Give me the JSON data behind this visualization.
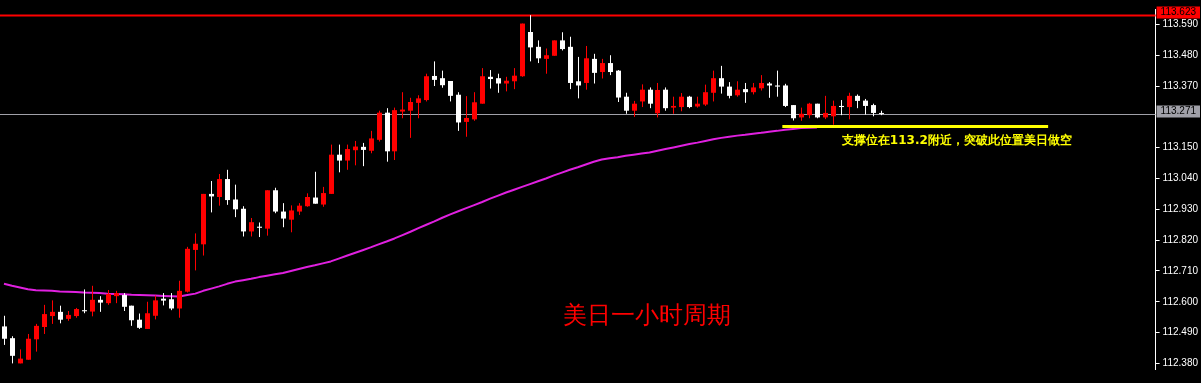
{
  "chart_data": {
    "type": "candlestick",
    "title": "美日一小时周期",
    "categories": [
      null,
      null,
      null,
      null,
      null,
      null,
      null,
      null,
      null,
      null,
      null,
      null,
      null,
      null,
      null,
      null,
      null,
      null,
      null,
      null,
      null,
      null,
      null,
      null,
      null,
      null,
      null,
      null,
      null,
      null,
      null,
      null,
      null,
      null,
      null,
      null,
      null,
      null,
      null,
      null,
      null,
      null,
      null,
      null,
      null,
      null,
      null,
      null,
      null,
      null,
      null,
      null,
      null,
      null,
      null,
      null,
      null,
      null,
      null,
      null,
      null,
      null,
      null,
      null,
      null,
      null,
      null,
      null,
      null,
      null,
      null,
      null,
      null,
      null,
      null,
      null,
      null,
      null,
      null,
      null,
      null,
      null,
      null,
      null,
      null,
      null,
      null,
      null,
      null,
      null,
      null,
      null,
      null,
      null,
      null,
      null,
      null,
      null,
      null,
      null,
      null,
      null,
      null,
      null,
      null,
      null,
      null,
      null,
      null,
      null,
      null,
      null,
      null,
      null,
      null,
      null,
      null,
      null,
      null,
      null,
      null,
      null,
      null,
      null,
      null,
      null,
      null,
      null,
      null,
      null,
      null,
      null,
      null,
      null,
      null,
      null,
      null,
      null,
      null,
      null,
      null,
      null,
      null,
      null,
      null
    ],
    "ohlc": [
      [
        112.512,
        112.55,
        112.446,
        112.468
      ],
      [
        112.47,
        112.477,
        112.38,
        112.407
      ],
      [
        112.38,
        112.43,
        112.38,
        112.397
      ],
      [
        112.393,
        112.485,
        112.393,
        112.468
      ],
      [
        112.466,
        112.521,
        112.422,
        112.514
      ],
      [
        112.51,
        112.589,
        112.485,
        112.556
      ],
      [
        112.549,
        112.605,
        112.521,
        112.564
      ],
      [
        112.564,
        112.586,
        112.523,
        112.536
      ],
      [
        112.539,
        112.567,
        112.532,
        112.553
      ],
      [
        112.549,
        112.578,
        112.543,
        112.574
      ],
      [
        112.57,
        112.644,
        112.559,
        112.566
      ],
      [
        112.565,
        112.657,
        112.548,
        112.607
      ],
      [
        112.607,
        112.62,
        112.564,
        112.597
      ],
      [
        112.595,
        112.642,
        112.589,
        112.628
      ],
      [
        112.62,
        112.639,
        112.595,
        112.631
      ],
      [
        112.624,
        112.631,
        112.567,
        112.582
      ],
      [
        112.586,
        112.586,
        112.514,
        112.534
      ],
      [
        112.536,
        112.558,
        112.503,
        112.507
      ],
      [
        112.503,
        112.6,
        112.503,
        112.559
      ],
      [
        112.55,
        112.622,
        112.537,
        112.605
      ],
      [
        112.611,
        112.631,
        112.587,
        112.604
      ],
      [
        112.609,
        112.631,
        112.57,
        112.576
      ],
      [
        112.576,
        112.675,
        112.543,
        112.639
      ],
      [
        112.636,
        112.796,
        112.633,
        112.789
      ],
      [
        112.785,
        112.844,
        112.712,
        112.807
      ],
      [
        112.805,
        112.985,
        112.765,
        112.985
      ],
      [
        112.985,
        113.031,
        112.919,
        112.976
      ],
      [
        112.974,
        113.056,
        112.943,
        113.038
      ],
      [
        113.038,
        113.071,
        112.946,
        112.963
      ],
      [
        112.965,
        113.018,
        112.902,
        112.93
      ],
      [
        112.932,
        112.941,
        112.833,
        112.851
      ],
      [
        112.851,
        112.899,
        112.833,
        112.884
      ],
      [
        112.868,
        112.883,
        112.831,
        112.864
      ],
      [
        112.861,
        112.998,
        112.836,
        112.998
      ],
      [
        112.998,
        113.007,
        112.916,
        112.922
      ],
      [
        112.922,
        112.952,
        112.866,
        112.897
      ],
      [
        112.893,
        112.944,
        112.848,
        112.926
      ],
      [
        112.922,
        112.952,
        112.91,
        112.943
      ],
      [
        112.941,
        112.987,
        112.939,
        112.974
      ],
      [
        112.972,
        113.064,
        112.95,
        112.95
      ],
      [
        112.947,
        113.01,
        112.939,
        112.988
      ],
      [
        112.985,
        113.161,
        112.985,
        113.125
      ],
      [
        113.125,
        113.161,
        113.062,
        113.104
      ],
      [
        113.104,
        113.161,
        113.071,
        113.145
      ],
      [
        113.141,
        113.174,
        113.087,
        113.154
      ],
      [
        113.153,
        113.167,
        113.084,
        113.142
      ],
      [
        113.139,
        113.21,
        113.13,
        113.183
      ],
      [
        113.178,
        113.282,
        113.172,
        113.275
      ],
      [
        113.275,
        113.291,
        113.1,
        113.137
      ],
      [
        113.137,
        113.293,
        113.106,
        113.284
      ],
      [
        113.279,
        113.348,
        113.255,
        113.286
      ],
      [
        113.282,
        113.328,
        113.185,
        113.313
      ],
      [
        113.31,
        113.337,
        113.255,
        113.326
      ],
      [
        113.32,
        113.414,
        113.315,
        113.405
      ],
      [
        113.406,
        113.458,
        113.37,
        113.392
      ],
      [
        113.398,
        113.425,
        113.364,
        113.373
      ],
      [
        113.388,
        113.388,
        113.315,
        113.335
      ],
      [
        113.339,
        113.348,
        113.21,
        113.24
      ],
      [
        113.242,
        113.334,
        113.189,
        113.256
      ],
      [
        113.251,
        113.348,
        113.246,
        113.312
      ],
      [
        113.307,
        113.434,
        113.307,
        113.405
      ],
      [
        113.403,
        113.427,
        113.361,
        113.395
      ],
      [
        113.398,
        113.414,
        113.346,
        113.379
      ],
      [
        113.379,
        113.403,
        113.351,
        113.389
      ],
      [
        113.387,
        113.434,
        113.359,
        113.407
      ],
      [
        113.405,
        113.593,
        113.403,
        113.593
      ],
      [
        113.563,
        113.623,
        113.458,
        113.508
      ],
      [
        113.51,
        113.533,
        113.452,
        113.469
      ],
      [
        113.467,
        113.504,
        113.414,
        113.48
      ],
      [
        113.478,
        113.533,
        113.478,
        113.533
      ],
      [
        113.533,
        113.562,
        113.497,
        113.502
      ],
      [
        113.51,
        113.546,
        113.359,
        113.381
      ],
      [
        113.387,
        113.474,
        113.326,
        113.372
      ],
      [
        113.381,
        113.513,
        113.357,
        113.469
      ],
      [
        113.467,
        113.485,
        113.379,
        113.417
      ],
      [
        113.42,
        113.467,
        113.397,
        113.452
      ],
      [
        113.452,
        113.48,
        113.409,
        113.42
      ],
      [
        113.425,
        113.427,
        113.313,
        113.329
      ],
      [
        113.332,
        113.346,
        113.271,
        113.282
      ],
      [
        113.282,
        113.317,
        113.26,
        113.307
      ],
      [
        113.315,
        113.376,
        113.295,
        113.357
      ],
      [
        113.357,
        113.365,
        113.291,
        113.307
      ],
      [
        113.273,
        113.381,
        113.258,
        113.356
      ],
      [
        113.357,
        113.365,
        113.282,
        113.291
      ],
      [
        113.293,
        113.332,
        113.271,
        113.299
      ],
      [
        113.295,
        113.345,
        113.28,
        113.332
      ],
      [
        113.332,
        113.335,
        113.291,
        113.295
      ],
      [
        113.297,
        113.332,
        113.293,
        113.307
      ],
      [
        113.304,
        113.375,
        113.299,
        113.348
      ],
      [
        113.346,
        113.425,
        113.315,
        113.398
      ],
      [
        113.398,
        113.442,
        113.343,
        113.368
      ],
      [
        113.368,
        113.384,
        113.326,
        113.335
      ],
      [
        113.337,
        113.387,
        113.332,
        113.357
      ],
      [
        113.359,
        113.381,
        113.31,
        113.348
      ],
      [
        113.348,
        113.381,
        113.34,
        113.365
      ],
      [
        113.362,
        113.409,
        113.354,
        113.381
      ],
      [
        113.379,
        113.384,
        113.328,
        113.372
      ],
      [
        113.372,
        113.425,
        113.332,
        113.368
      ],
      [
        113.372,
        113.378,
        113.295,
        113.299
      ],
      [
        113.302,
        113.302,
        113.247,
        113.255
      ],
      [
        113.258,
        113.293,
        113.246,
        113.271
      ],
      [
        113.266,
        113.31,
        113.255,
        113.307
      ],
      [
        113.307,
        113.307,
        113.255,
        113.258
      ],
      [
        113.258,
        113.335,
        113.252,
        113.274
      ],
      [
        113.262,
        113.318,
        113.232,
        113.299
      ],
      [
        113.299,
        113.32,
        113.266,
        113.295
      ],
      [
        113.295,
        113.346,
        113.251,
        113.335
      ],
      [
        113.335,
        113.34,
        113.291,
        113.317
      ],
      [
        113.318,
        113.324,
        113.268,
        113.299
      ],
      [
        113.302,
        113.307,
        113.262,
        113.274
      ],
      [
        113.274,
        113.282,
        113.266,
        113.271
      ],
      null,
      null,
      null,
      null,
      null,
      null,
      null,
      null,
      null,
      null,
      null,
      null,
      null,
      null,
      null,
      null,
      null,
      null,
      null,
      null,
      null,
      null,
      null,
      null,
      null,
      null,
      null,
      null,
      null,
      null,
      null,
      null,
      null,
      null
    ],
    "colors": [
      "#ffffff",
      "#ffffff",
      "#ff0000",
      "#ff0000",
      "#ff0000",
      "#ff0000",
      "#ff0000",
      "#ffffff",
      "#ff0000",
      "#ff0000",
      "#ffffff",
      "#ff0000",
      "#ffffff",
      "#ff0000",
      "#ff0000",
      "#ffffff",
      "#ffffff",
      "#ffffff",
      "#ff0000",
      "#ff0000",
      "#ffffff",
      "#ffffff",
      "#ff0000",
      "#ff0000",
      "#ff0000",
      "#ff0000",
      "#ffffff",
      "#ff0000",
      "#ffffff",
      "#ffffff",
      "#ffffff",
      "#ff0000",
      "#ffffff",
      "#ff0000",
      "#ffffff",
      "#ffffff",
      "#ff0000",
      "#ff0000",
      "#ff0000",
      "#ffffff",
      "#ff0000",
      "#ff0000",
      "#ffffff",
      "#ff0000",
      "#ff0000",
      "#ffffff",
      "#ff0000",
      "#ff0000",
      "#ffffff",
      "#ff0000",
      "#ff0000",
      "#ff0000",
      "#ff0000",
      "#ff0000",
      "#ffffff",
      "#ffffff",
      "#ffffff",
      "#ffffff",
      "#ff0000",
      "#ff0000",
      "#ff0000",
      "#ffffff",
      "#ffffff",
      "#ff0000",
      "#ff0000",
      "#ff0000",
      "#ffffff",
      "#ffffff",
      "#ff0000",
      "#ff0000",
      "#ffffff",
      "#ffffff",
      "#ffffff",
      "#ff0000",
      "#ffffff",
      "#ff0000",
      "#ffffff",
      "#ffffff",
      "#ffffff",
      "#ff0000",
      "#ff0000",
      "#ffffff",
      "#ff0000",
      "#ffffff",
      "#ff0000",
      "#ff0000",
      "#ffffff",
      "#ff0000",
      "#ff0000",
      "#ff0000",
      "#ffffff",
      "#ffffff",
      "#ff0000",
      "#ffffff",
      "#ff0000",
      "#ff0000",
      "#ffffff",
      "#ffffff",
      "#ffffff",
      "#ffffff",
      "#ff0000",
      "#ff0000",
      "#ffffff",
      "#ff0000",
      "#ff0000",
      "#ffffff",
      "#ff0000",
      "#ffffff",
      "#ffffff",
      "#ffffff",
      "#ffffff",
      null,
      null,
      null,
      null,
      null,
      null,
      null,
      null,
      null,
      null,
      null,
      null,
      null,
      null,
      null,
      null,
      null,
      null,
      null,
      null,
      null,
      null,
      null,
      null,
      null,
      null,
      null,
      null,
      null,
      null,
      null,
      null,
      null,
      null
    ],
    "series": [
      {
        "type": "line",
        "color": "#e020e0",
        "values": [
          112.664,
          112.657,
          112.651,
          112.645,
          112.641,
          112.64,
          112.639,
          112.637,
          112.636,
          112.635,
          112.633,
          112.632,
          112.631,
          112.629,
          112.628,
          112.627,
          112.625,
          112.624,
          112.623,
          112.622,
          112.621,
          112.62,
          112.619,
          112.624,
          112.629,
          112.639,
          112.647,
          112.655,
          112.664,
          112.672,
          112.677,
          112.682,
          112.688,
          112.693,
          112.698,
          112.703,
          112.71,
          112.717,
          112.724,
          112.73,
          112.737,
          112.744,
          112.754,
          112.764,
          112.774,
          112.784,
          112.794,
          112.805,
          112.815,
          112.826,
          112.838,
          112.85,
          112.863,
          112.875,
          112.887,
          112.9,
          112.912,
          112.923,
          112.934,
          112.945,
          112.956,
          112.968,
          112.979,
          112.99,
          113.0,
          113.01,
          113.02,
          113.03,
          113.04,
          113.051,
          113.061,
          113.071,
          113.08,
          113.09,
          113.1,
          113.108,
          113.112,
          113.116,
          113.121,
          113.125,
          113.129,
          113.133,
          113.139,
          113.145,
          113.151,
          113.157,
          113.163,
          113.168,
          113.174,
          113.18,
          113.185,
          113.189,
          113.193,
          113.196,
          113.2,
          113.203,
          113.207,
          113.21,
          113.214,
          113.217,
          113.22,
          113.221,
          113.222,
          null,
          null,
          null,
          null,
          null,
          null,
          null,
          null,
          null,
          null,
          null,
          null,
          null,
          null,
          null,
          null,
          null,
          null,
          null,
          null,
          null,
          null,
          null,
          null,
          null,
          null,
          null,
          null,
          null,
          null,
          null,
          null,
          null,
          null,
          null,
          null,
          null,
          null,
          null,
          null,
          null,
          null
        ]
      }
    ],
    "ylim": [
      112.36,
      113.645
    ],
    "yticks": [
      {
        "value": 113.59,
        "label": "113.590"
      },
      {
        "value": 113.48,
        "label": "113.480"
      },
      {
        "value": 113.37,
        "label": "113.370"
      },
      {
        "value": 113.15,
        "label": "113.150"
      },
      {
        "value": 113.04,
        "label": "113.040"
      },
      {
        "value": 112.93,
        "label": "112.930"
      },
      {
        "value": 112.82,
        "label": "112.820"
      },
      {
        "value": 112.71,
        "label": "112.710"
      },
      {
        "value": 112.6,
        "label": "112.600"
      },
      {
        "value": 112.49,
        "label": "112.490"
      },
      {
        "value": 112.38,
        "label": "112.380"
      }
    ],
    "ref_lines": [
      {
        "axis": "y",
        "value": 113.623,
        "label": "113.623",
        "color": "#ff0000"
      },
      {
        "axis": "y",
        "value": 113.271,
        "label": "113.271",
        "color": "#a0a0a8"
      },
      {
        "axis": "y",
        "value": 113.228,
        "color": "#ffff00"
      }
    ],
    "annotations": [
      {
        "text": "支撑位在113.2附近，突破此位置美日做空",
        "y": 113.228
      }
    ],
    "tick_labels": "y",
    "legend": false,
    "grid": false,
    "marker": "none"
  }
}
